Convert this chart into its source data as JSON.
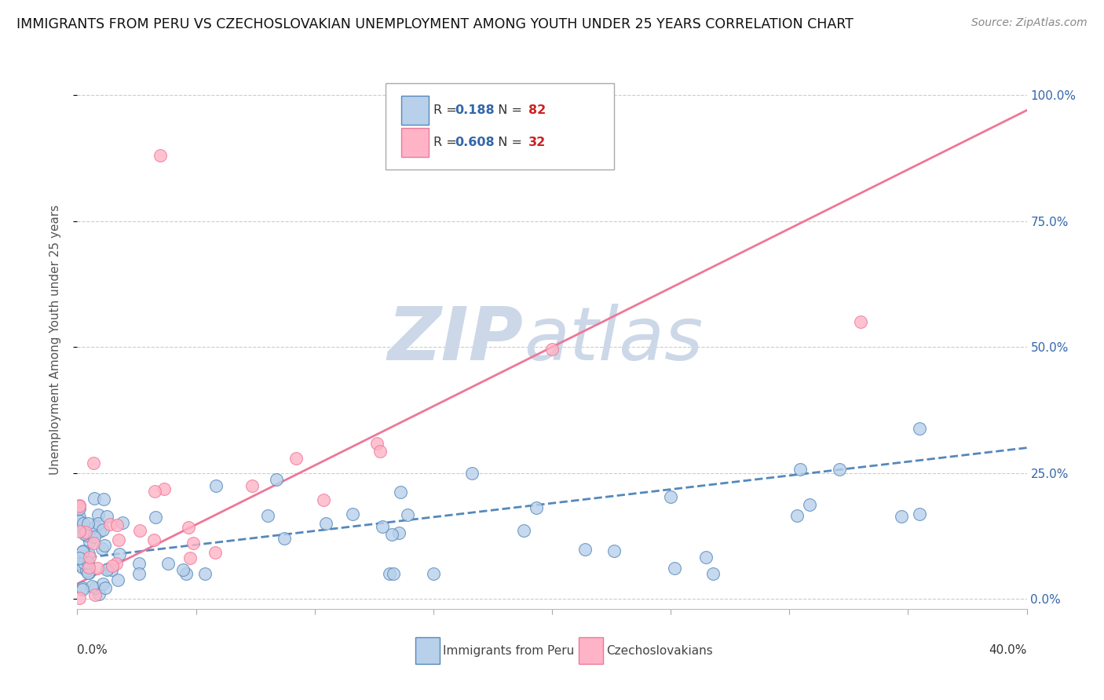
{
  "title": "IMMIGRANTS FROM PERU VS CZECHOSLOVAKIAN UNEMPLOYMENT AMONG YOUTH UNDER 25 YEARS CORRELATION CHART",
  "source": "Source: ZipAtlas.com",
  "ylabel": "Unemployment Among Youth under 25 years",
  "yaxis_labels": [
    "0.0%",
    "25.0%",
    "50.0%",
    "75.0%",
    "100.0%"
  ],
  "yaxis_values": [
    0.0,
    0.25,
    0.5,
    0.75,
    1.0
  ],
  "xlim": [
    0.0,
    0.4
  ],
  "ylim": [
    -0.02,
    1.05
  ],
  "peru_R": "0.188",
  "peru_N": "82",
  "czech_R": "0.608",
  "czech_N": "32",
  "color_peru_fill": "#b8d0ea",
  "color_peru_edge": "#5588bb",
  "color_peru_line": "#5588bb",
  "color_czech_fill": "#ffb3c6",
  "color_czech_edge": "#ee7799",
  "color_czech_line": "#ee7799",
  "color_R_value": "#3366aa",
  "color_N_value": "#cc2222",
  "watermark_zip_color": "#ccd8e8",
  "watermark_atlas_color": "#ccd8e8",
  "legend_box_color": "#aaaaaa",
  "grid_color": "#cccccc",
  "title_color": "#111111",
  "source_color": "#888888",
  "ylabel_color": "#555555",
  "axis_label_color": "#333333"
}
